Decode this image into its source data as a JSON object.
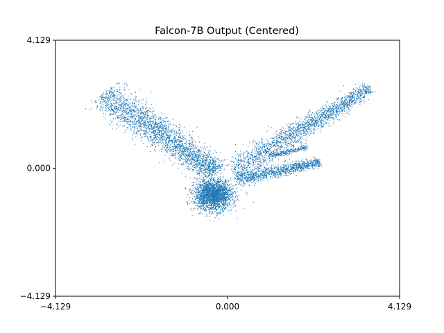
{
  "chart_data": {
    "type": "scatter",
    "title": "Falcon-7B Output (Centered)",
    "xlabel": "",
    "ylabel": "",
    "xlim": [
      -4.129,
      4.129
    ],
    "ylim": [
      -4.129,
      4.129
    ],
    "xticks": [
      -4.129,
      0.0,
      4.129
    ],
    "yticks": [
      -4.129,
      0.0,
      4.129
    ],
    "xtick_labels": [
      "−4.129",
      "0.000",
      "4.129"
    ],
    "ytick_labels": [
      "−4.129",
      "0.000",
      "4.129"
    ],
    "grid": false,
    "legend": "none",
    "color": "#1f77b4",
    "point_clusters": [
      {
        "name": "left-arm",
        "from": [
          -3.0,
          2.4
        ],
        "to": [
          -0.3,
          -0.1
        ],
        "width_start": 0.4,
        "width_end": 0.55,
        "count": 2600
      },
      {
        "name": "upper-right-arm",
        "from": [
          0.1,
          -0.1
        ],
        "to": [
          3.4,
          2.6
        ],
        "width_start": 0.2,
        "width_end": 0.45,
        "count": 2000
      },
      {
        "name": "lower-right-arm",
        "from": [
          0.2,
          -0.35
        ],
        "to": [
          2.2,
          0.2
        ],
        "width_start": 0.15,
        "width_end": 0.25,
        "count": 1100
      },
      {
        "name": "middle-streak",
        "from": [
          1.0,
          0.4
        ],
        "to": [
          1.9,
          0.7
        ],
        "width_start": 0.04,
        "width_end": 0.05,
        "count": 250
      },
      {
        "name": "center-core",
        "center": [
          -0.35,
          -0.85
        ],
        "spread": [
          0.45,
          0.5
        ],
        "count": 2400
      }
    ]
  }
}
